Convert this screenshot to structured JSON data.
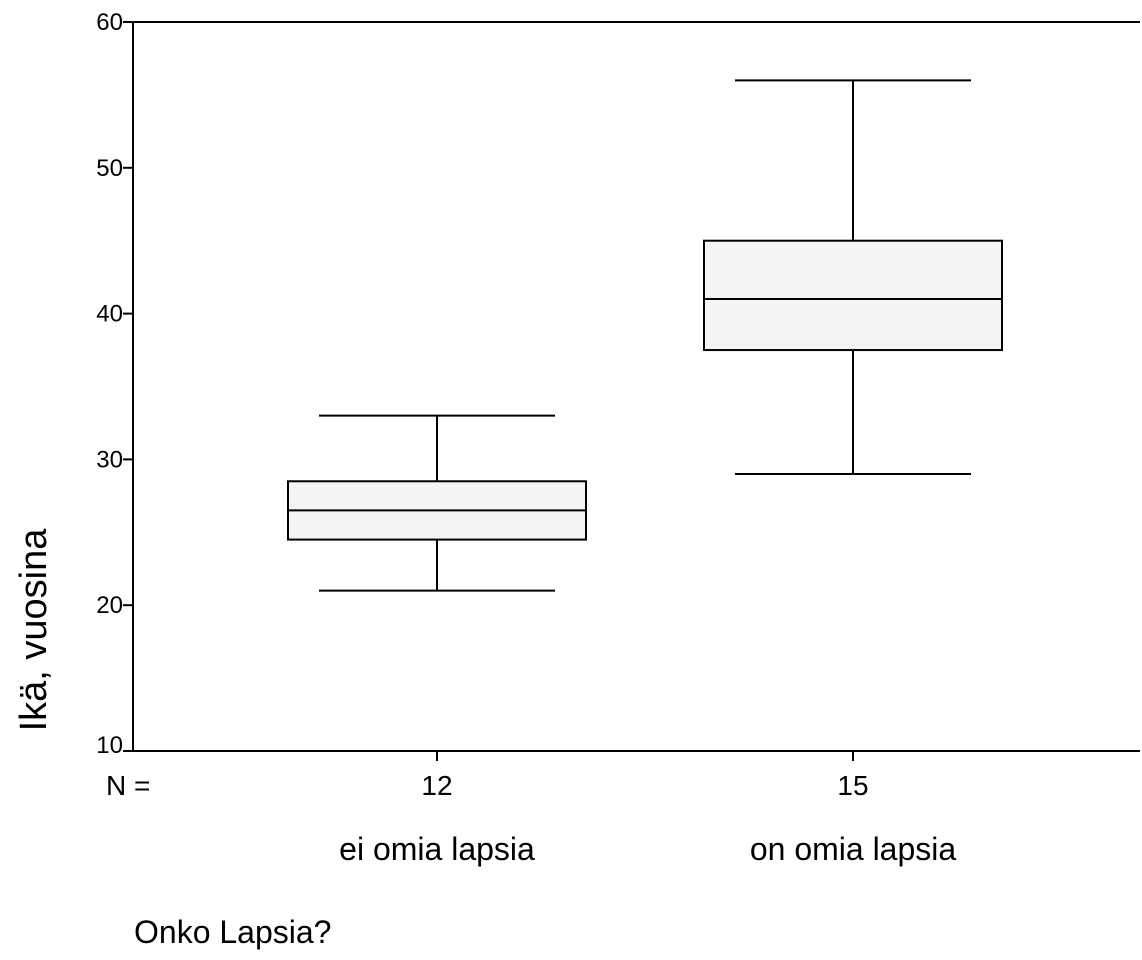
{
  "chart_data": {
    "type": "boxplot",
    "ylabel": "Ikä, vuosina",
    "xlabel": "Onko Lapsia?",
    "ylim": [
      10,
      60
    ],
    "yticks": [
      10,
      20,
      30,
      40,
      50,
      60
    ],
    "n_prefix": "N =",
    "grid": false,
    "box_fill": "#f4f4f4",
    "line_color": "#000000",
    "groups": [
      {
        "label": "ei omia lapsia",
        "n": "12",
        "min": 21,
        "q1": 24.5,
        "median": 26.5,
        "q3": 28.5,
        "max": 33
      },
      {
        "label": "on omia lapsia",
        "n": "15",
        "min": 29,
        "q1": 37.5,
        "median": 41,
        "q3": 45,
        "max": 56
      }
    ]
  }
}
